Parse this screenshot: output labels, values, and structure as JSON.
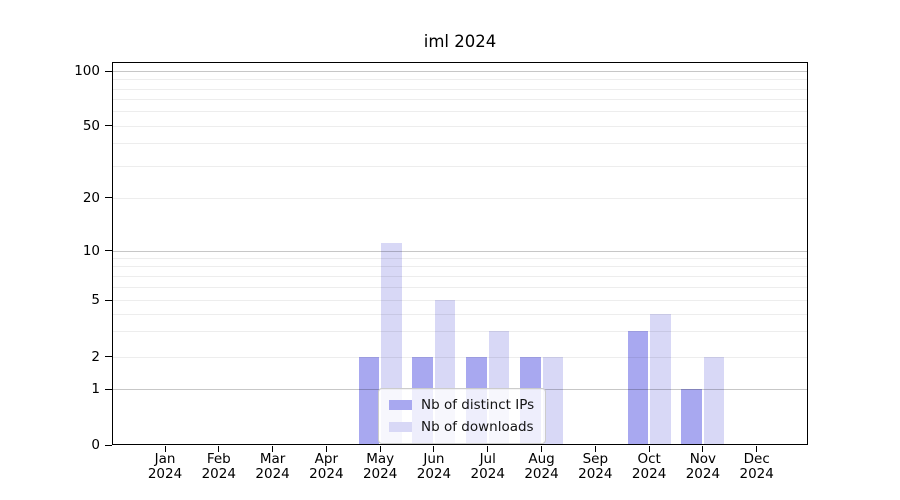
{
  "title": "iml 2024",
  "chart_data": {
    "type": "bar",
    "title": "iml 2024",
    "categories": [
      "Jan",
      "Feb",
      "Mar",
      "Apr",
      "May",
      "Jun",
      "Jul",
      "Aug",
      "Sep",
      "Oct",
      "Nov",
      "Dec"
    ],
    "x_tick_second_line": "2024",
    "series": [
      {
        "name": "Nb of distinct IPs",
        "color": "#a8a8f0",
        "values": [
          0,
          0,
          0,
          0,
          2,
          2,
          2,
          2,
          0,
          3,
          1,
          0
        ]
      },
      {
        "name": "Nb of downloads",
        "color": "#d8d8f6",
        "values": [
          0,
          0,
          0,
          0,
          11,
          5,
          3,
          2,
          0,
          4,
          2,
          0
        ]
      }
    ],
    "yticks": [
      0,
      1,
      2,
      5,
      10,
      20,
      50,
      100
    ],
    "major_gridlines": [
      1,
      10,
      100
    ],
    "minor_gridlines": [
      2,
      3,
      4,
      5,
      6,
      7,
      8,
      9,
      20,
      30,
      40,
      50,
      60,
      70,
      80,
      90
    ],
    "ylim": [
      0,
      112
    ],
    "yscale": "asinh",
    "grid": "on",
    "legend": {
      "position": "lower center",
      "entries": [
        "Nb of distinct IPs",
        "Nb of downloads"
      ]
    },
    "colors": {
      "major_grid": "rgba(0,0,0,0.22)",
      "minor_grid": "rgba(0,0,0,0.07)",
      "axis": "#000000",
      "legend_border": "#cccccc"
    }
  }
}
